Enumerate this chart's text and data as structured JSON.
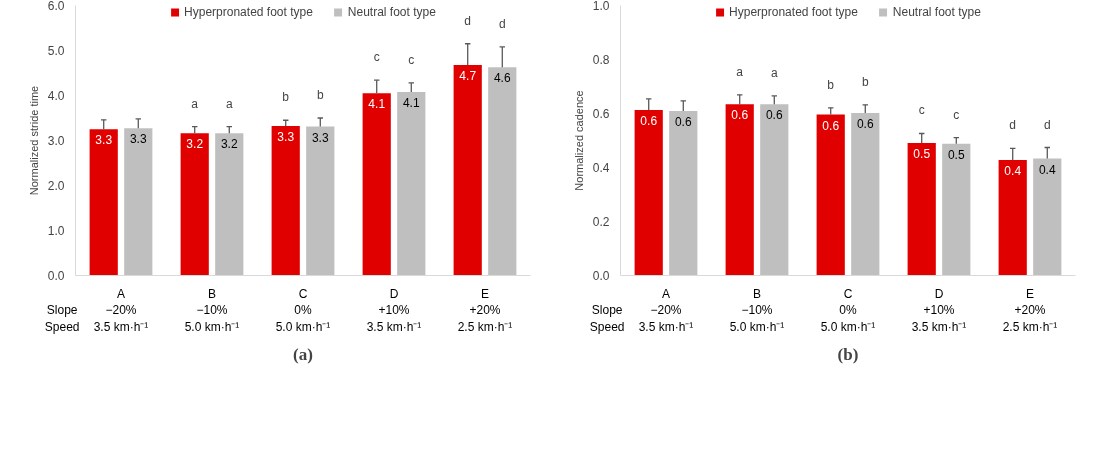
{
  "chart_data": [
    {
      "type": "bar",
      "title": "(a)",
      "ylabel": "Normalized stride time",
      "categories": [
        "A\n−20%\n3.5 km·h⁻¹",
        "B\n−10%\n5.0 km·h⁻¹",
        "C\n0%\n5.0 km·h⁻¹",
        "D\n+10%\n3.5 km·h⁻¹",
        "E\n+20%\n2.5 km·h⁻¹"
      ],
      "series": [
        {
          "name": "Hyperpronated foot type",
          "color": "#e00000",
          "values": [
            3.25,
            3.16,
            3.32,
            4.05,
            4.68
          ],
          "value_labels": [
            "3.3",
            "3.2",
            "3.3",
            "4.1",
            "4.7"
          ],
          "errors": [
            [
              3.25,
              3.46
            ],
            [
              3.16,
              3.31
            ],
            [
              3.32,
              3.45
            ],
            [
              4.05,
              4.34
            ],
            [
              4.68,
              5.15
            ]
          ]
        },
        {
          "name": "Neutral foot type",
          "color": "#bfbfbf",
          "values": [
            3.27,
            3.16,
            3.31,
            4.08,
            4.63
          ],
          "value_labels": [
            "3.3",
            "3.2",
            "3.3",
            "4.1",
            "4.6"
          ],
          "errors": [
            [
              3.27,
              3.48
            ],
            [
              3.16,
              3.31
            ],
            [
              3.31,
              3.5
            ],
            [
              4.08,
              4.28
            ],
            [
              4.63,
              5.08
            ]
          ]
        }
      ],
      "ylim": [
        0,
        6
      ],
      "yticks": [
        {
          "value": 0,
          "label": "0.0"
        },
        {
          "value": 1,
          "label": "1.0"
        },
        {
          "value": 2,
          "label": "2.0"
        },
        {
          "value": 3,
          "label": "3.0"
        },
        {
          "value": 4,
          "label": "4.0"
        },
        {
          "value": 5,
          "label": "5.0"
        },
        {
          "value": 6,
          "label": "6.0"
        }
      ],
      "legend": "top",
      "grid": false,
      "annotations": [
        "Slope",
        "Speed",
        "a",
        "a",
        "b",
        "b",
        "c",
        "c",
        "d",
        "d"
      ]
    },
    {
      "type": "bar",
      "title": "(b)",
      "ylabel": "Normalized cadence",
      "categories": [
        "A\n−20%\n3.5 km·h⁻¹",
        "B\n−10%\n5.0 km·h⁻¹",
        "C\n0%\n5.0 km·h⁻¹",
        "D\n+10%\n3.5 km·h⁻¹",
        "E\n+20%\n2.5 km·h⁻¹"
      ],
      "series": [
        {
          "name": "Hyperpronated foot type",
          "color": "#e00000",
          "values": [
            0.613,
            0.634,
            0.596,
            0.491,
            0.428
          ],
          "value_labels": [
            "0.6",
            "0.6",
            "0.6",
            "0.5",
            "0.4"
          ],
          "errors": [
            [
              0.613,
              0.654
            ],
            [
              0.634,
              0.669
            ],
            [
              0.596,
              0.621
            ],
            [
              0.491,
              0.526
            ],
            [
              0.428,
              0.471
            ]
          ]
        },
        {
          "name": "Neutral foot type",
          "color": "#bfbfbf",
          "values": [
            0.609,
            0.634,
            0.602,
            0.488,
            0.433
          ],
          "value_labels": [
            "0.6",
            "0.6",
            "0.6",
            "0.5",
            "0.4"
          ],
          "errors": [
            [
              0.609,
              0.647
            ],
            [
              0.634,
              0.665
            ],
            [
              0.602,
              0.632
            ],
            [
              0.488,
              0.511
            ],
            [
              0.433,
              0.474
            ]
          ]
        }
      ],
      "ylim": [
        0,
        1
      ],
      "yticks": [
        {
          "value": 0,
          "label": "0.0"
        },
        {
          "value": 0.2,
          "label": "0.2"
        },
        {
          "value": 0.4,
          "label": "0.4"
        },
        {
          "value": 0.6,
          "label": "0.6"
        },
        {
          "value": 0.8,
          "label": "0.8"
        },
        {
          "value": 1,
          "label": "1.0"
        }
      ],
      "legend": "top",
      "grid": false,
      "annotations": [
        "Slope",
        "Speed",
        "a",
        "a",
        "b",
        "b",
        "c",
        "c",
        "d",
        "d"
      ]
    }
  ]
}
